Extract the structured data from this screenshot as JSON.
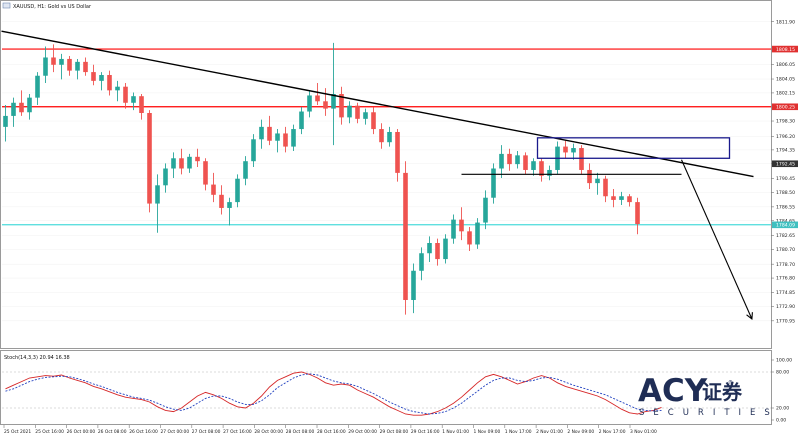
{
  "header": {
    "symbol_title": "XAUUSD, H1:  Gold vs US Dollar"
  },
  "subwindow": {
    "indicator_label": "Stoch(14,3,3) 20.94 16.38"
  },
  "logo": {
    "brand": "ACY",
    "cn_text": "证券",
    "registered": "®",
    "subtitle": "SECURITIES"
  },
  "colors": {
    "bull": "#26a69a",
    "bear": "#ef5350",
    "resistance_line": "#ff0000",
    "support_line": "#00cccc",
    "trendline": "#000000",
    "zone_box": "#1a1a8c",
    "stoch_main": "#d62728",
    "stoch_signal": "#1f3fbf",
    "price_tag_red": "#e03030",
    "price_tag_teal": "#40c0c0",
    "price_tag_dark": "#333333"
  },
  "chart_data": [
    {
      "type": "candlestick",
      "title": "XAUUSD, H1:  Gold vs US Dollar",
      "ylim": [
        1767.5,
        1813.5
      ],
      "y_ticks": [
        "1811.90",
        "1808.15",
        "1806.05",
        "1804.05",
        "1802.15",
        "1800.25",
        "1798.30",
        "1796.20",
        "1794.35",
        "1792.45",
        "1790.45",
        "1788.50",
        "1786.55",
        "1784.65",
        "1782.65",
        "1780.70",
        "1778.70",
        "1776.80",
        "1774.85",
        "1772.90",
        "1770.95"
      ],
      "x_ticks": [
        "25 Oct 2021",
        "25 Oct 16:00",
        "26 Oct 00:00",
        "26 Oct 08:00",
        "26 Oct 16:00",
        "27 Oct 00:00",
        "27 Oct 08:00",
        "27 Oct 16:00",
        "28 Oct 00:00",
        "28 Oct 08:00",
        "28 Oct 16:00",
        "29 Oct 00:00",
        "29 Oct 08:00",
        "29 Oct 16:00",
        "1 Nov 01:00",
        "1 Nov 09:00",
        "1 Nov 17:00",
        "2 Nov 01:00",
        "2 Nov 09:00",
        "2 Nov 17:00",
        "3 Nov 01:00"
      ],
      "price_tags": [
        {
          "price": 1808.15,
          "label": "1808.15",
          "style": "red"
        },
        {
          "price": 1800.25,
          "label": "1800.25",
          "style": "red"
        },
        {
          "price": 1792.45,
          "label": "1792.45",
          "style": "dark"
        },
        {
          "price": 1784.09,
          "label": "1784.09",
          "style": "teal"
        }
      ],
      "horizontal_lines": [
        {
          "price": 1808.15,
          "color": "red"
        },
        {
          "price": 1800.25,
          "color": "red"
        },
        {
          "price": 1784.09,
          "color": "teal"
        },
        {
          "price": 1791.0,
          "color": "black",
          "segment": true
        }
      ],
      "candles": [
        {
          "o": 1797.5,
          "h": 1800.5,
          "l": 1795.5,
          "c": 1799.0
        },
        {
          "o": 1799.0,
          "h": 1801.5,
          "l": 1797.5,
          "c": 1800.8
        },
        {
          "o": 1800.8,
          "h": 1802.5,
          "l": 1799.0,
          "c": 1799.5
        },
        {
          "o": 1799.5,
          "h": 1802.0,
          "l": 1798.5,
          "c": 1801.5
        },
        {
          "o": 1801.5,
          "h": 1805.0,
          "l": 1800.5,
          "c": 1804.5
        },
        {
          "o": 1804.5,
          "h": 1808.5,
          "l": 1803.5,
          "c": 1807.0
        },
        {
          "o": 1807.0,
          "h": 1808.8,
          "l": 1805.0,
          "c": 1806.0
        },
        {
          "o": 1806.0,
          "h": 1807.5,
          "l": 1804.0,
          "c": 1806.8
        },
        {
          "o": 1806.8,
          "h": 1807.2,
          "l": 1804.5,
          "c": 1805.2
        },
        {
          "o": 1805.2,
          "h": 1806.8,
          "l": 1804.0,
          "c": 1806.4
        },
        {
          "o": 1806.4,
          "h": 1807.0,
          "l": 1804.5,
          "c": 1805.0
        },
        {
          "o": 1805.0,
          "h": 1806.0,
          "l": 1803.2,
          "c": 1803.8
        },
        {
          "o": 1803.8,
          "h": 1805.0,
          "l": 1802.5,
          "c": 1804.6
        },
        {
          "o": 1804.6,
          "h": 1805.2,
          "l": 1801.8,
          "c": 1802.5
        },
        {
          "o": 1802.5,
          "h": 1803.8,
          "l": 1801.0,
          "c": 1803.0
        },
        {
          "o": 1803.0,
          "h": 1803.5,
          "l": 1800.0,
          "c": 1800.8
        },
        {
          "o": 1800.8,
          "h": 1802.2,
          "l": 1799.8,
          "c": 1801.7
        },
        {
          "o": 1801.7,
          "h": 1802.0,
          "l": 1798.5,
          "c": 1799.4
        },
        {
          "o": 1799.4,
          "h": 1799.8,
          "l": 1785.8,
          "c": 1787.0
        },
        {
          "o": 1787.0,
          "h": 1791.0,
          "l": 1783.0,
          "c": 1789.5
        },
        {
          "o": 1789.5,
          "h": 1792.5,
          "l": 1788.5,
          "c": 1791.8
        },
        {
          "o": 1791.8,
          "h": 1794.0,
          "l": 1790.5,
          "c": 1793.2
        },
        {
          "o": 1793.2,
          "h": 1794.5,
          "l": 1791.0,
          "c": 1791.8
        },
        {
          "o": 1791.8,
          "h": 1793.8,
          "l": 1791.2,
          "c": 1793.4
        },
        {
          "o": 1793.4,
          "h": 1794.5,
          "l": 1792.0,
          "c": 1792.8
        },
        {
          "o": 1792.8,
          "h": 1793.2,
          "l": 1788.8,
          "c": 1789.6
        },
        {
          "o": 1789.6,
          "h": 1791.2,
          "l": 1787.2,
          "c": 1788.2
        },
        {
          "o": 1788.2,
          "h": 1789.5,
          "l": 1785.5,
          "c": 1786.4
        },
        {
          "o": 1786.4,
          "h": 1787.8,
          "l": 1784.0,
          "c": 1787.2
        },
        {
          "o": 1787.2,
          "h": 1791.0,
          "l": 1786.5,
          "c": 1790.4
        },
        {
          "o": 1790.4,
          "h": 1793.5,
          "l": 1789.5,
          "c": 1792.8
        },
        {
          "o": 1792.8,
          "h": 1796.5,
          "l": 1792.0,
          "c": 1795.8
        },
        {
          "o": 1795.8,
          "h": 1798.5,
          "l": 1794.5,
          "c": 1797.5
        },
        {
          "o": 1797.5,
          "h": 1799.0,
          "l": 1795.0,
          "c": 1795.6
        },
        {
          "o": 1795.6,
          "h": 1797.2,
          "l": 1794.0,
          "c": 1796.6
        },
        {
          "o": 1796.6,
          "h": 1797.5,
          "l": 1794.0,
          "c": 1794.8
        },
        {
          "o": 1794.8,
          "h": 1797.8,
          "l": 1794.2,
          "c": 1797.2
        },
        {
          "o": 1797.2,
          "h": 1800.2,
          "l": 1796.5,
          "c": 1799.6
        },
        {
          "o": 1799.6,
          "h": 1802.5,
          "l": 1798.8,
          "c": 1801.8
        },
        {
          "o": 1801.8,
          "h": 1803.5,
          "l": 1800.5,
          "c": 1801.0
        },
        {
          "o": 1801.0,
          "h": 1802.8,
          "l": 1799.0,
          "c": 1800.0
        },
        {
          "o": 1800.0,
          "h": 1809.0,
          "l": 1795.0,
          "c": 1802.0
        },
        {
          "o": 1802.0,
          "h": 1803.0,
          "l": 1797.8,
          "c": 1798.8
        },
        {
          "o": 1798.8,
          "h": 1801.0,
          "l": 1798.0,
          "c": 1800.4
        },
        {
          "o": 1800.4,
          "h": 1800.8,
          "l": 1798.0,
          "c": 1798.6
        },
        {
          "o": 1798.6,
          "h": 1800.0,
          "l": 1797.8,
          "c": 1799.5
        },
        {
          "o": 1799.5,
          "h": 1800.2,
          "l": 1796.5,
          "c": 1797.2
        },
        {
          "o": 1797.2,
          "h": 1798.0,
          "l": 1794.5,
          "c": 1795.4
        },
        {
          "o": 1795.4,
          "h": 1797.5,
          "l": 1794.8,
          "c": 1796.8
        },
        {
          "o": 1796.8,
          "h": 1797.2,
          "l": 1790.0,
          "c": 1791.2
        },
        {
          "o": 1791.2,
          "h": 1792.8,
          "l": 1771.8,
          "c": 1773.8
        },
        {
          "o": 1773.8,
          "h": 1778.8,
          "l": 1772.0,
          "c": 1777.8
        },
        {
          "o": 1777.8,
          "h": 1781.0,
          "l": 1776.5,
          "c": 1780.2
        },
        {
          "o": 1780.2,
          "h": 1782.5,
          "l": 1779.0,
          "c": 1781.6
        },
        {
          "o": 1781.6,
          "h": 1782.2,
          "l": 1778.5,
          "c": 1779.4
        },
        {
          "o": 1779.4,
          "h": 1782.8,
          "l": 1778.8,
          "c": 1782.2
        },
        {
          "o": 1782.2,
          "h": 1785.5,
          "l": 1781.5,
          "c": 1784.8
        },
        {
          "o": 1784.8,
          "h": 1786.5,
          "l": 1782.0,
          "c": 1783.2
        },
        {
          "o": 1783.2,
          "h": 1783.8,
          "l": 1780.5,
          "c": 1781.4
        },
        {
          "o": 1781.4,
          "h": 1785.0,
          "l": 1780.8,
          "c": 1784.4
        },
        {
          "o": 1784.4,
          "h": 1788.8,
          "l": 1783.5,
          "c": 1787.8
        },
        {
          "o": 1787.8,
          "h": 1792.5,
          "l": 1787.0,
          "c": 1791.8
        },
        {
          "o": 1791.8,
          "h": 1795.0,
          "l": 1790.5,
          "c": 1793.8
        },
        {
          "o": 1793.8,
          "h": 1794.5,
          "l": 1791.5,
          "c": 1792.4
        },
        {
          "o": 1792.4,
          "h": 1794.2,
          "l": 1791.8,
          "c": 1793.6
        },
        {
          "o": 1793.6,
          "h": 1794.0,
          "l": 1791.0,
          "c": 1791.6
        },
        {
          "o": 1791.6,
          "h": 1793.2,
          "l": 1790.8,
          "c": 1792.8
        },
        {
          "o": 1792.8,
          "h": 1793.2,
          "l": 1790.0,
          "c": 1790.8
        },
        {
          "o": 1790.8,
          "h": 1792.2,
          "l": 1790.2,
          "c": 1791.6
        },
        {
          "o": 1791.6,
          "h": 1795.5,
          "l": 1791.0,
          "c": 1794.8
        },
        {
          "o": 1794.8,
          "h": 1795.6,
          "l": 1793.2,
          "c": 1794.0
        },
        {
          "o": 1794.0,
          "h": 1795.2,
          "l": 1793.0,
          "c": 1794.6
        },
        {
          "o": 1794.6,
          "h": 1795.0,
          "l": 1791.0,
          "c": 1791.6
        },
        {
          "o": 1791.6,
          "h": 1792.5,
          "l": 1789.0,
          "c": 1789.8
        },
        {
          "o": 1789.8,
          "h": 1791.2,
          "l": 1788.2,
          "c": 1790.4
        },
        {
          "o": 1790.4,
          "h": 1790.8,
          "l": 1787.2,
          "c": 1788.0
        },
        {
          "o": 1788.0,
          "h": 1789.0,
          "l": 1786.5,
          "c": 1787.5
        },
        {
          "o": 1787.5,
          "h": 1788.6,
          "l": 1786.8,
          "c": 1788.0
        },
        {
          "o": 1788.0,
          "h": 1788.3,
          "l": 1786.6,
          "c": 1787.2
        },
        {
          "o": 1787.2,
          "h": 1787.8,
          "l": 1782.8,
          "c": 1784.2
        }
      ],
      "annotations": {
        "trendline": {
          "from": {
            "index": -0.5,
            "price": 1810.6
          },
          "to": {
            "index": 93.5,
            "price": 1790.7
          }
        },
        "zone_box": {
          "from": {
            "index": 66.5,
            "price": 1796.0
          },
          "to": {
            "index": 90.5,
            "price": 1793.2
          }
        },
        "support_segment": {
          "from": {
            "index": 57,
            "price": 1791.0
          },
          "to": {
            "index": 84.5,
            "price": 1791.0
          }
        },
        "projection_arrow": {
          "from": {
            "index": 84.5,
            "price": 1793.0
          },
          "to": {
            "index": 93.3,
            "price": 1771.2
          }
        }
      }
    },
    {
      "type": "line",
      "title": "Stoch(14,3,3) 20.94 16.38",
      "ylim": [
        0,
        100
      ],
      "y_ticks": [
        "100.00",
        "80.00",
        "20.00",
        "0.00"
      ],
      "levels": [
        80,
        20
      ],
      "series": [
        {
          "values": [
            52,
            58,
            64,
            70,
            72,
            74,
            73,
            75,
            70,
            66,
            62,
            56,
            52,
            47,
            42,
            38,
            36,
            34,
            30,
            22,
            16,
            14,
            20,
            30,
            40,
            46,
            42,
            36,
            28,
            22,
            20,
            28,
            40,
            55,
            66,
            72,
            78,
            80,
            76,
            70,
            62,
            58,
            60,
            58,
            50,
            44,
            38,
            30,
            22,
            16,
            10,
            8,
            8,
            10,
            14,
            20,
            28,
            38,
            50,
            62,
            72,
            76,
            72,
            66,
            60,
            64,
            70,
            74,
            70,
            62,
            56,
            52,
            48,
            44,
            40,
            34,
            26,
            18,
            12,
            10,
            14,
            16,
            21
          ]
        },
        {
          "values": [
            48,
            52,
            58,
            64,
            68,
            71,
            72,
            73,
            72,
            69,
            65,
            60,
            56,
            51,
            46,
            42,
            38,
            36,
            33,
            28,
            22,
            18,
            16,
            20,
            28,
            36,
            40,
            40,
            36,
            30,
            26,
            26,
            32,
            42,
            54,
            62,
            70,
            75,
            77,
            75,
            70,
            65,
            62,
            60,
            56,
            50,
            44,
            37,
            30,
            24,
            18,
            14,
            12,
            10,
            11,
            14,
            20,
            28,
            38,
            48,
            58,
            66,
            70,
            70,
            66,
            64,
            66,
            70,
            71,
            68,
            63,
            58,
            54,
            50,
            46,
            42,
            36,
            30,
            24,
            18,
            16,
            15,
            16
          ]
        }
      ]
    }
  ]
}
